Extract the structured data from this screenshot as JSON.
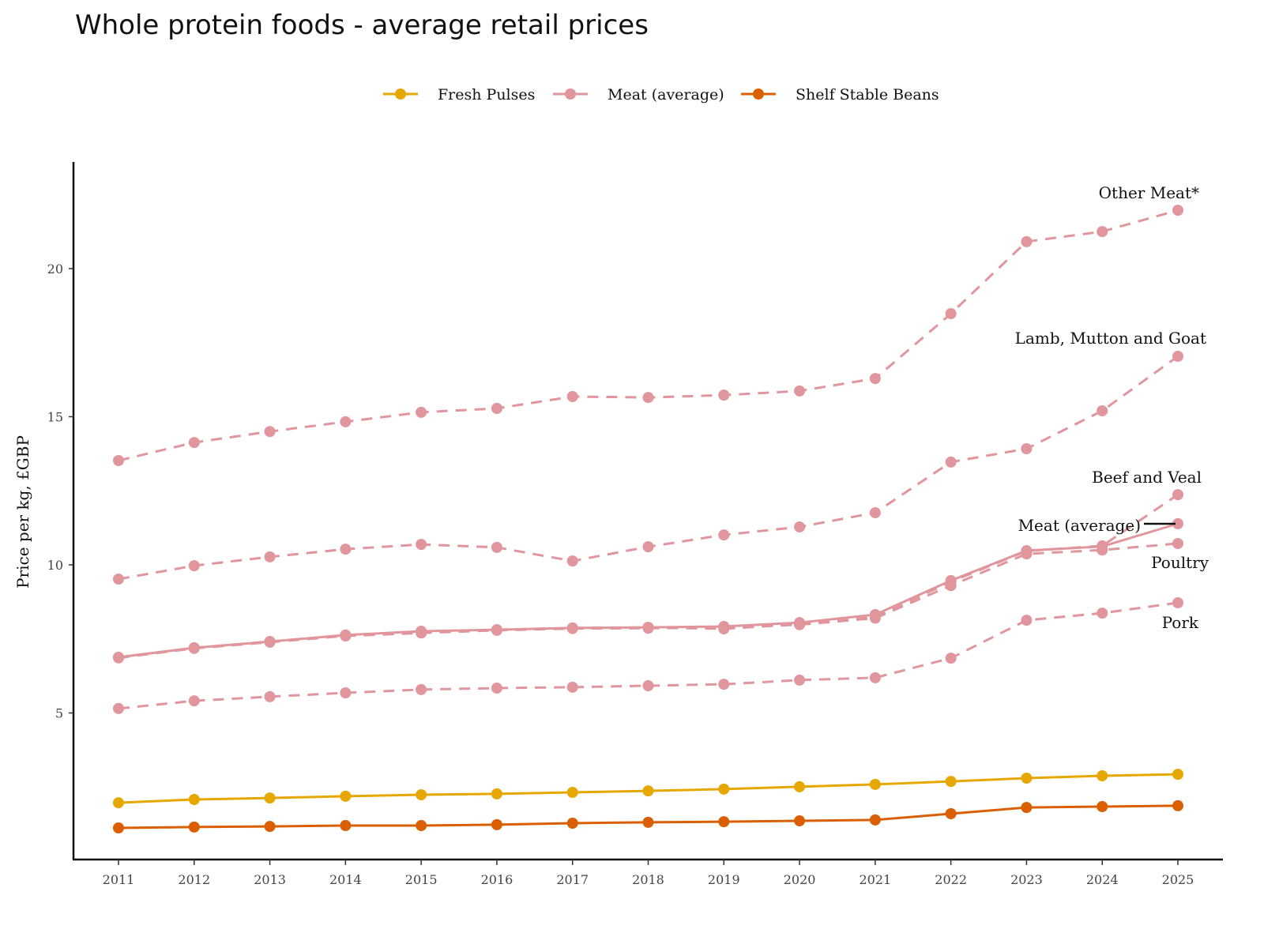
{
  "chart_data": {
    "type": "line",
    "title": "Whole protein foods - average retail prices",
    "xlabel": "",
    "ylabel": "Price per kg, £GBP",
    "x": [
      2011,
      2012,
      2013,
      2014,
      2015,
      2016,
      2017,
      2018,
      2019,
      2020,
      2021,
      2022,
      2023,
      2024,
      2025
    ],
    "yticks": [
      5,
      10,
      15,
      20
    ],
    "ylim": [
      0,
      23.6
    ],
    "grid": false,
    "legend_position": "top",
    "legend": [
      {
        "name": "Fresh Pulses",
        "color": "#E6A800"
      },
      {
        "name": "Meat (average)",
        "color": "#E0969C"
      },
      {
        "name": "Shelf Stable Beans",
        "color": "#D95F02"
      }
    ],
    "series": [
      {
        "name": "Fresh Pulses",
        "color": "#E6A800",
        "style": "solid",
        "values": [
          1.97,
          2.08,
          2.13,
          2.19,
          2.24,
          2.27,
          2.32,
          2.37,
          2.43,
          2.51,
          2.59,
          2.69,
          2.8,
          2.88,
          2.93
        ]
      },
      {
        "name": "Shelf Stable Beans",
        "color": "#D95F02",
        "style": "solid",
        "values": [
          1.12,
          1.15,
          1.17,
          1.2,
          1.2,
          1.23,
          1.28,
          1.31,
          1.33,
          1.36,
          1.39,
          1.6,
          1.81,
          1.84,
          1.87
        ]
      },
      {
        "name": "Meat (average)",
        "color": "#E0969C",
        "style": "solid",
        "values": [
          6.88,
          7.2,
          7.41,
          7.63,
          7.76,
          7.81,
          7.87,
          7.89,
          7.92,
          8.05,
          8.32,
          9.47,
          10.48,
          10.62,
          11.39
        ]
      },
      {
        "name": "Other Meat*",
        "color": "#E0969C",
        "style": "dashed",
        "values": [
          13.52,
          14.13,
          14.5,
          14.83,
          15.15,
          15.28,
          15.68,
          15.65,
          15.73,
          15.87,
          16.29,
          18.48,
          20.91,
          21.25,
          21.97
        ]
      },
      {
        "name": "Lamb, Mutton and Goat",
        "color": "#E0969C",
        "style": "dashed",
        "values": [
          9.52,
          9.97,
          10.27,
          10.53,
          10.69,
          10.59,
          10.13,
          10.61,
          11.01,
          11.28,
          11.76,
          13.47,
          13.92,
          15.2,
          17.04
        ]
      },
      {
        "name": "Beef and Veal",
        "color": "#E0969C",
        "style": "dashed",
        "values": [
          6.88,
          7.2,
          7.41,
          7.63,
          7.73,
          7.81,
          7.87,
          7.89,
          7.84,
          8.0,
          8.24,
          9.43,
          10.47,
          10.64,
          12.37
        ]
      },
      {
        "name": "Poultry",
        "color": "#E0969C",
        "style": "dashed",
        "values": [
          6.86,
          7.18,
          7.39,
          7.6,
          7.7,
          7.79,
          7.85,
          7.86,
          7.88,
          7.98,
          8.2,
          9.3,
          10.37,
          10.5,
          10.72
        ]
      },
      {
        "name": "Pork",
        "color": "#E0969C",
        "style": "dashed",
        "values": [
          5.15,
          5.41,
          5.55,
          5.68,
          5.79,
          5.84,
          5.87,
          5.92,
          5.97,
          6.11,
          6.19,
          6.85,
          8.13,
          8.37,
          8.72
        ]
      }
    ],
    "annotations": [
      "Other Meat*",
      "Lamb, Mutton and Goat",
      "Beef and Veal",
      "Meat (average)",
      "Poultry",
      "Pork"
    ]
  }
}
